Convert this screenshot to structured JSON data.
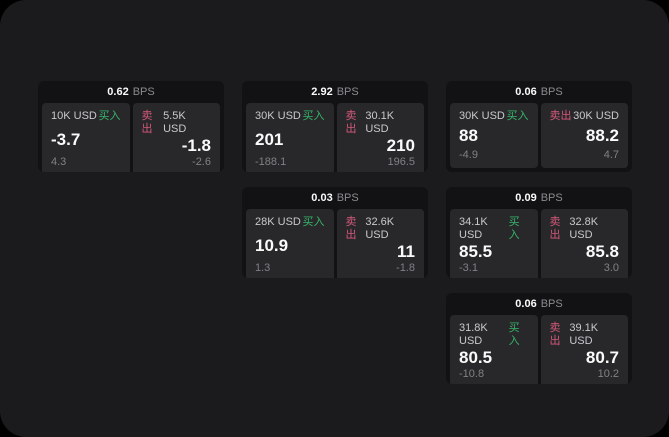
{
  "labels": {
    "bps_unit": "BPS",
    "buy": "买入",
    "sell": "卖出"
  },
  "colors": {
    "outer_background": "#000000",
    "surface_background": "#1b1b1d",
    "card_background": "#121214",
    "panel_background": "#28282a",
    "buy_accent": "#36b56a",
    "sell_accent": "#d4587a",
    "primary_text": "#fafafa",
    "label_text": "#c9c9cd",
    "muted_text": "#808086"
  },
  "cards": [
    {
      "bps": "0.62",
      "buy_amount": "10K USD",
      "buy_value": "-3.7",
      "buy_sub": "4.3",
      "sell_amount": "5.5K USD",
      "sell_value": "-1.8",
      "sell_sub": "-2.6"
    },
    {
      "bps": "2.92",
      "buy_amount": "30K USD",
      "buy_value": "201",
      "buy_sub": "-188.1",
      "sell_amount": "30.1K USD",
      "sell_value": "210",
      "sell_sub": "196.5"
    },
    {
      "bps": "0.06",
      "buy_amount": "30K USD",
      "buy_value": "88",
      "buy_sub": "-4.9",
      "sell_amount": "30K USD",
      "sell_value": "88.2",
      "sell_sub": "4.7"
    },
    {
      "bps": "0.03",
      "buy_amount": "28K USD",
      "buy_value": "10.9",
      "buy_sub": "1.3",
      "sell_amount": "32.6K USD",
      "sell_value": "11",
      "sell_sub": "-1.8"
    },
    {
      "bps": "0.09",
      "buy_amount": "34.1K USD",
      "buy_value": "85.5",
      "buy_sub": "-3.1",
      "sell_amount": "32.8K USD",
      "sell_value": "85.8",
      "sell_sub": "3.0"
    },
    {
      "bps": "0.06",
      "buy_amount": "31.8K USD",
      "buy_value": "80.5",
      "buy_sub": "-10.8",
      "sell_amount": "39.1K USD",
      "sell_value": "80.7",
      "sell_sub": "10.2"
    }
  ]
}
